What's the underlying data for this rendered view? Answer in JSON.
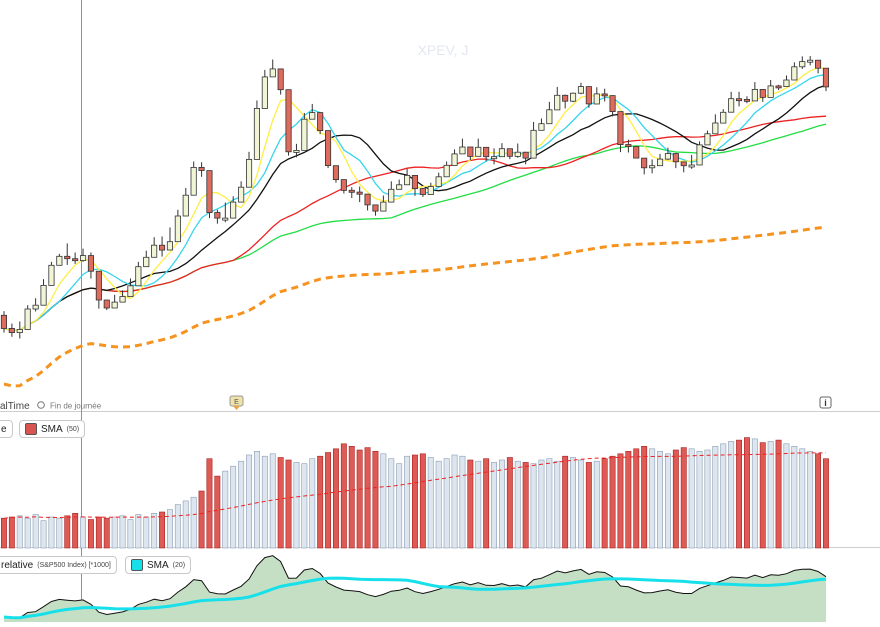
{
  "title": "XPEV, J",
  "realtime_label": "alTime",
  "end_of_day_label": "Fin de journée",
  "event_marker_label": "E",
  "info_icon_label": "i",
  "volume_panel": {
    "left_badge_label": "e",
    "sma_label": "SMA",
    "sma_period": "(50)",
    "sma_color": "#d9534f"
  },
  "relative_panel": {
    "label": "relative",
    "detail": "(S&P500 Index) [*1000]",
    "sma_label": "SMA",
    "sma_period": "(20)",
    "sma_color": "#17e0ea"
  },
  "colors": {
    "up_candle": "#f1f5d6",
    "down_candle": "#dd6b5e",
    "sma_yellow": "#ffee44",
    "sma_cyan": "#35d5ee",
    "sma_black": "#111111",
    "sma_red": "#ee2222",
    "sma_green": "#22dd44",
    "sma_orange_dashed": "#f5931e",
    "volume_up": "#dde6ef",
    "volume_down": "#dd5a55",
    "relative_fill": "#c5dfc4"
  },
  "chart_data": {
    "type": "candlestick",
    "price_scale": [
      0,
      100
    ],
    "candles": [
      [
        25.0,
        21.2,
        26.2,
        20.0
      ],
      [
        21.2,
        20.0,
        22.6,
        18.8
      ],
      [
        20.0,
        20.9,
        23.2,
        18.3
      ],
      [
        20.9,
        26.8,
        27.9,
        25.8
      ],
      [
        26.8,
        27.9,
        29.9,
        26.1
      ],
      [
        27.9,
        33.6,
        35.4,
        32.2
      ],
      [
        33.6,
        39.4,
        40.4,
        38.6
      ],
      [
        39.4,
        42.0,
        42.7,
        40.2
      ],
      [
        42.0,
        41.3,
        45.7,
        39.5
      ],
      [
        41.3,
        40.8,
        43.1,
        39.8
      ],
      [
        40.8,
        42.2,
        44.2,
        40.4
      ],
      [
        42.2,
        37.7,
        43.1,
        35.6
      ],
      [
        37.7,
        29.4,
        31.1,
        26.9
      ],
      [
        29.4,
        27.1,
        28.8,
        26.5
      ],
      [
        27.1,
        28.8,
        30.9,
        27.1
      ],
      [
        28.8,
        30.4,
        32.2,
        29.0
      ],
      [
        30.4,
        33.5,
        35.6,
        31.6
      ],
      [
        33.5,
        39.0,
        40.4,
        37.0
      ],
      [
        39.0,
        41.7,
        43.6,
        40.4
      ],
      [
        41.7,
        45.2,
        47.5,
        44.8
      ],
      [
        45.2,
        43.8,
        47.7,
        41.9
      ],
      [
        43.8,
        46.2,
        50.3,
        46.0
      ],
      [
        46.2,
        53.6,
        55.4,
        51.8
      ],
      [
        53.6,
        59.6,
        61.7,
        58.2
      ],
      [
        59.6,
        67.6,
        69.3,
        66.1
      ],
      [
        67.6,
        66.7,
        69.1,
        64.9
      ],
      [
        66.7,
        54.6,
        56.8,
        53.0
      ],
      [
        54.6,
        53.0,
        55.4,
        51.4
      ],
      [
        53.0,
        53.0,
        57.5,
        51.8
      ],
      [
        53.0,
        57.6,
        59.3,
        55.6
      ],
      [
        57.6,
        61.9,
        63.6,
        61.3
      ],
      [
        61.9,
        69.9,
        72.1,
        68.1
      ],
      [
        69.9,
        84.6,
        86.9,
        82.7
      ],
      [
        84.6,
        93.7,
        95.7,
        91.1
      ],
      [
        93.7,
        96.0,
        98.7,
        94.4
      ],
      [
        96.0,
        90.0,
        92.7,
        88.6
      ],
      [
        90.0,
        72.1,
        73.5,
        71.0
      ],
      [
        72.1,
        72.5,
        74.4,
        70.5
      ],
      [
        72.5,
        81.5,
        83.3,
        79.4
      ],
      [
        81.5,
        83.4,
        85.9,
        82.2
      ],
      [
        83.4,
        78.2,
        80.0,
        77.2
      ],
      [
        78.2,
        68.1,
        69.5,
        67.4
      ],
      [
        68.1,
        64.1,
        66.4,
        63.2
      ],
      [
        64.1,
        61.0,
        63.8,
        60.1
      ],
      [
        61.0,
        60.5,
        61.9,
        58.8
      ],
      [
        60.5,
        59.9,
        62.1,
        57.6
      ],
      [
        59.9,
        56.8,
        58.2,
        55.2
      ],
      [
        56.8,
        55.0,
        56.9,
        53.7
      ],
      [
        55.0,
        57.6,
        59.5,
        56.3
      ],
      [
        57.6,
        61.3,
        63.6,
        60.7
      ],
      [
        61.3,
        62.6,
        64.1,
        61.2
      ],
      [
        62.6,
        65.3,
        67.2,
        64.4
      ],
      [
        65.3,
        61.5,
        62.6,
        59.4
      ],
      [
        61.5,
        59.8,
        61.7,
        59.1
      ],
      [
        59.8,
        62.1,
        63.2,
        60.8
      ],
      [
        62.1,
        64.9,
        66.1,
        63.4
      ],
      [
        64.9,
        68.2,
        69.3,
        67.4
      ],
      [
        68.2,
        71.5,
        72.8,
        70.8
      ],
      [
        71.5,
        73.5,
        75.9,
        72.0
      ],
      [
        73.5,
        70.8,
        72.5,
        69.7
      ],
      [
        70.8,
        73.4,
        75.9,
        71.6
      ],
      [
        73.4,
        70.7,
        72.6,
        69.4
      ],
      [
        70.7,
        70.7,
        73.1,
        68.5
      ],
      [
        70.7,
        73.0,
        74.6,
        72.3
      ],
      [
        73.0,
        70.8,
        71.9,
        70.0
      ],
      [
        70.8,
        72.0,
        74.5,
        70.4
      ],
      [
        72.0,
        70.3,
        72.1,
        68.5
      ],
      [
        70.3,
        78.3,
        80.7,
        76.5
      ],
      [
        78.3,
        80.2,
        81.7,
        78.7
      ],
      [
        80.2,
        84.2,
        86.5,
        82.8
      ],
      [
        84.2,
        88.4,
        90.8,
        87.8
      ],
      [
        88.4,
        86.7,
        88.6,
        84.6
      ],
      [
        86.7,
        89.0,
        89.2,
        86.4
      ],
      [
        89.0,
        90.9,
        92.0,
        88.7
      ],
      [
        90.9,
        85.9,
        87.4,
        84.8
      ],
      [
        85.9,
        88.8,
        90.7,
        88.0
      ],
      [
        88.8,
        88.3,
        90.3,
        86.6
      ],
      [
        88.3,
        83.7,
        85.9,
        82.3
      ],
      [
        83.7,
        74.2,
        75.6,
        72.0
      ],
      [
        74.2,
        73.6,
        75.6,
        71.9
      ],
      [
        73.6,
        70.3,
        72.1,
        70.3
      ],
      [
        70.3,
        67.5,
        70.0,
        65.6
      ],
      [
        67.5,
        68.1,
        69.9,
        65.9
      ],
      [
        68.1,
        70.0,
        71.5,
        69.2
      ],
      [
        70.0,
        71.6,
        73.3,
        69.7
      ],
      [
        71.6,
        69.2,
        71.8,
        67.4
      ],
      [
        69.2,
        68.1,
        69.2,
        66.2
      ],
      [
        68.1,
        68.3,
        71.2,
        67.2
      ],
      [
        68.3,
        74.1,
        75.1,
        72.3
      ],
      [
        74.1,
        77.3,
        78.2,
        76.2
      ],
      [
        77.3,
        80.4,
        82.9,
        79.6
      ],
      [
        80.4,
        83.5,
        84.4,
        82.4
      ],
      [
        83.5,
        87.4,
        89.4,
        85.5
      ],
      [
        87.4,
        87.2,
        89.4,
        85.2
      ],
      [
        87.2,
        86.8,
        88.1,
        86.1
      ],
      [
        86.8,
        90.1,
        92.2,
        89.5
      ],
      [
        90.1,
        87.8,
        89.5,
        86.5
      ],
      [
        87.8,
        91.1,
        92.8,
        90.9
      ],
      [
        91.1,
        90.9,
        91.4,
        89.9
      ],
      [
        90.9,
        92.8,
        94.1,
        90.8
      ],
      [
        92.8,
        96.6,
        97.9,
        95.9
      ],
      [
        96.6,
        98.1,
        99.6,
        96.0
      ],
      [
        98.1,
        98.5,
        99.7,
        97.0
      ],
      [
        98.5,
        96.2,
        98.0,
        94.7
      ],
      [
        96.2,
        90.8,
        92.5,
        89.6
      ]
    ],
    "moving_averages": [
      "SMA yellow",
      "SMA cyan",
      "SMA black",
      "SMA red",
      "SMA green",
      "SMA orange dashed"
    ],
    "volume": [
      24,
      25,
      26,
      24,
      27,
      22,
      25,
      24,
      26,
      28,
      25,
      23,
      25,
      24,
      25,
      26,
      23,
      27,
      25,
      28,
      29,
      31,
      35,
      38,
      41,
      46,
      72,
      58,
      62,
      66,
      70,
      75,
      78,
      74,
      76,
      73,
      71,
      69,
      68,
      72,
      74,
      77,
      80,
      84,
      82,
      79,
      81,
      78,
      76,
      72,
      68,
      74,
      75,
      76,
      73,
      70,
      72,
      75,
      74,
      71,
      70,
      72,
      69,
      71,
      73,
      70,
      69,
      68,
      71,
      72,
      70,
      74,
      73,
      71,
      69,
      70,
      72,
      74,
      76,
      78,
      80,
      82,
      80,
      78,
      76,
      79,
      81,
      80,
      78,
      79,
      82,
      84,
      86,
      87,
      89,
      88,
      85,
      86,
      87,
      84,
      82,
      80,
      78,
      76,
      72
    ]
  }
}
